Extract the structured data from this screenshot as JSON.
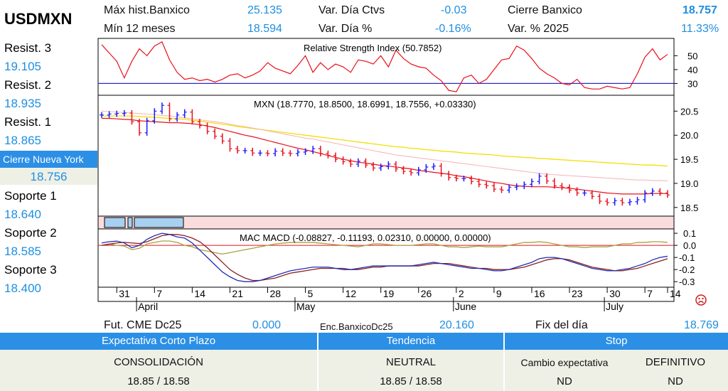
{
  "symbol": "USDMXN",
  "header": {
    "max_label": "Máx hist.Banxico",
    "max_value": "25.135",
    "min_label": "Mín 12 meses",
    "min_value": "18.594",
    "var_ctvs_label": "Var. Día Ctvs",
    "var_ctvs_value": "-0.03",
    "var_pct_label": "Var. Día %",
    "var_pct_value": "-0.16%",
    "cierre_label": "Cierre Banxico",
    "cierre_value": "18.757",
    "var2025_label": "Var. % 2025",
    "var2025_value": "11.33%"
  },
  "levels": [
    {
      "label": "Resist. 3",
      "value": "19.105"
    },
    {
      "label": "Resist. 2",
      "value": "18.935"
    },
    {
      "label": "Resist. 1",
      "value": "18.865"
    },
    {
      "label": "Soporte 1",
      "value": "18.640"
    },
    {
      "label": "Soporte 2",
      "value": "18.585"
    },
    {
      "label": "Soporte 3",
      "value": "18.400"
    }
  ],
  "ny": {
    "label": "Cierre Nueva York",
    "value": "18.756"
  },
  "footer_top": {
    "fut_label": "Fut. CME Dc25",
    "fut_value": "0.000",
    "enc_label": "Enc.BanxicoDc25",
    "enc_value": "20.160",
    "fix_label": "Fix del día",
    "fix_value": "18.769"
  },
  "bottom": {
    "h1": "Expectativa Corto Plazo",
    "h2": "Tendencia",
    "h3": "Stop",
    "c1a": "CONSOLIDACIÓN",
    "c1b": "18.85 / 18.58",
    "c2a": "NEUTRAL",
    "c2b": "18.85 / 18.58",
    "c3a_label": "Cambio expectativa",
    "c3a_value": "DEFINITIVO",
    "c3b_label": "ND",
    "c3b_value": "ND"
  },
  "colors": {
    "up": "#1a1aff",
    "down": "#e8101a",
    "ma_fast": "#e8101a",
    "ma_mid": "#f7b7bd",
    "ma_slow": "#f2e000",
    "rsi": "#e8101a",
    "rsi_level": "#2b2bd0",
    "macd": "#2030b0",
    "signal": "#8b2020",
    "sig2": "#a8a040"
  },
  "chart_data": [
    {
      "type": "line",
      "title": "Relative Strength Index (50.7852)",
      "ylim": [
        22,
        62
      ],
      "yticks": [
        30,
        40,
        50
      ],
      "reference": 30,
      "values": [
        58,
        52,
        46,
        34,
        46,
        55,
        50,
        57,
        60,
        47,
        38,
        33,
        34,
        32,
        33,
        31,
        33,
        36,
        37,
        34,
        36,
        39,
        45,
        41,
        39,
        37,
        43,
        50,
        38,
        45,
        40,
        44,
        42,
        38,
        47,
        46,
        44,
        50,
        42,
        54,
        48,
        44,
        42,
        41,
        36,
        32,
        25,
        24,
        34,
        36,
        30,
        33,
        40,
        47,
        48,
        57,
        54,
        48,
        41,
        37,
        34,
        30,
        29,
        33,
        27,
        26,
        26,
        28,
        27,
        26,
        27,
        37,
        49,
        55,
        47,
        51
      ]
    },
    {
      "type": "candlestick",
      "title": "MXN (18.7770, 18.8500, 18.6991, 18.7556, +0.03330)",
      "ylim": [
        18.35,
        20.8
      ],
      "yticks": [
        18.5,
        19.0,
        19.5,
        20.0,
        20.5
      ],
      "x_ticks": [
        "31",
        "7",
        "14",
        "21",
        "28",
        "5",
        "12",
        "19",
        "26",
        "2",
        "9",
        "16",
        "23",
        "30",
        "7",
        "14"
      ],
      "months": [
        "April",
        "May",
        "June",
        "July"
      ],
      "close": [
        20.42,
        20.44,
        20.45,
        20.46,
        20.28,
        20.05,
        20.3,
        20.5,
        20.62,
        20.34,
        20.42,
        20.48,
        20.28,
        20.2,
        20.08,
        19.98,
        19.88,
        19.72,
        19.68,
        19.68,
        19.63,
        19.63,
        19.62,
        19.67,
        19.63,
        19.62,
        19.65,
        19.67,
        19.72,
        19.62,
        19.58,
        19.5,
        19.45,
        19.4,
        19.46,
        19.38,
        19.32,
        19.35,
        19.4,
        19.3,
        19.25,
        19.22,
        19.28,
        19.34,
        19.36,
        19.2,
        19.12,
        19.1,
        19.1,
        19.04,
        18.98,
        18.95,
        18.88,
        18.86,
        18.92,
        18.94,
        18.98,
        19.04,
        19.15,
        19.05,
        18.95,
        18.92,
        18.86,
        18.8,
        18.8,
        18.73,
        18.63,
        18.6,
        18.64,
        18.6,
        18.62,
        18.66,
        18.8,
        18.84,
        18.8,
        18.76
      ],
      "ma_fast": [
        20.35,
        20.35,
        20.34,
        20.33,
        20.32,
        20.3,
        20.29,
        20.28,
        20.27,
        20.26,
        20.26,
        20.25,
        20.24,
        20.22,
        20.19,
        20.16,
        20.12,
        20.08,
        20.04,
        20.0,
        19.97,
        19.93,
        19.89,
        19.85,
        19.81,
        19.77,
        19.73,
        19.7,
        19.66,
        19.62,
        19.58,
        19.54,
        19.5,
        19.47,
        19.44,
        19.42,
        19.4,
        19.37,
        19.36,
        19.34,
        19.32,
        19.3,
        19.27,
        19.25,
        19.23,
        19.21,
        19.19,
        19.16,
        19.14,
        19.11,
        19.08,
        19.05,
        19.02,
        19.0,
        18.97,
        18.95,
        18.94,
        18.93,
        18.93,
        18.93,
        18.92,
        18.91,
        18.9,
        18.88,
        18.86,
        18.84,
        18.82,
        18.8,
        18.79,
        18.78,
        18.78,
        18.78,
        18.78,
        18.79,
        18.79,
        18.79
      ],
      "ma_mid": [
        20.5,
        20.49,
        20.48,
        20.47,
        20.46,
        20.45,
        20.44,
        20.43,
        20.41,
        20.4,
        20.38,
        20.36,
        20.34,
        20.32,
        20.3,
        20.28,
        20.26,
        20.23,
        20.2,
        20.18,
        20.15,
        20.12,
        20.09,
        20.06,
        20.03,
        20.0,
        19.97,
        19.94,
        19.92,
        19.89,
        19.86,
        19.83,
        19.8,
        19.77,
        19.74,
        19.71,
        19.68,
        19.65,
        19.62,
        19.59,
        19.57,
        19.55,
        19.53,
        19.51,
        19.49,
        19.47,
        19.45,
        19.43,
        19.41,
        19.39,
        19.37,
        19.35,
        19.33,
        19.31,
        19.29,
        19.27,
        19.25,
        19.23,
        19.21,
        19.19,
        19.18,
        19.17,
        19.16,
        19.15,
        19.14,
        19.13,
        19.12,
        19.11,
        19.1,
        19.09,
        19.08,
        19.07,
        19.07,
        19.06,
        19.06,
        19.05
      ],
      "ma_slow": [
        20.4,
        20.4,
        20.4,
        20.4,
        20.4,
        20.39,
        20.38,
        20.37,
        20.36,
        20.35,
        20.34,
        20.33,
        20.31,
        20.29,
        20.27,
        20.25,
        20.23,
        20.21,
        20.18,
        20.16,
        20.14,
        20.12,
        20.1,
        20.08,
        20.06,
        20.04,
        20.02,
        20.0,
        19.98,
        19.96,
        19.94,
        19.92,
        19.9,
        19.88,
        19.86,
        19.84,
        19.82,
        19.8,
        19.78,
        19.76,
        19.75,
        19.73,
        19.72,
        19.7,
        19.69,
        19.67,
        19.66,
        19.65,
        19.63,
        19.62,
        19.61,
        19.6,
        19.59,
        19.57,
        19.56,
        19.55,
        19.54,
        19.53,
        19.52,
        19.51,
        19.5,
        19.49,
        19.48,
        19.47,
        19.46,
        19.45,
        19.44,
        19.43,
        19.42,
        19.41,
        19.4,
        19.39,
        19.38,
        19.38,
        19.37,
        19.36
      ]
    },
    {
      "type": "line",
      "title": "MAC MACD (-0.08827, -0.11193, 0.02310, 0.00000, 0.00000)",
      "ylim": [
        -0.34,
        0.13
      ],
      "yticks": [
        0.1,
        0.0,
        -0.1,
        -0.2,
        -0.3
      ],
      "reference": 0.0,
      "macd": [
        0.02,
        0.03,
        0.035,
        0.02,
        -0.02,
        0.0,
        0.05,
        0.08,
        0.1,
        0.09,
        0.07,
        0.06,
        0.02,
        -0.04,
        -0.1,
        -0.16,
        -0.22,
        -0.26,
        -0.29,
        -0.3,
        -0.3,
        -0.29,
        -0.27,
        -0.25,
        -0.23,
        -0.21,
        -0.2,
        -0.19,
        -0.18,
        -0.18,
        -0.18,
        -0.19,
        -0.2,
        -0.2,
        -0.19,
        -0.18,
        -0.17,
        -0.17,
        -0.17,
        -0.17,
        -0.17,
        -0.17,
        -0.16,
        -0.15,
        -0.14,
        -0.15,
        -0.16,
        -0.17,
        -0.18,
        -0.19,
        -0.19,
        -0.2,
        -0.21,
        -0.21,
        -0.2,
        -0.18,
        -0.16,
        -0.14,
        -0.11,
        -0.1,
        -0.1,
        -0.11,
        -0.13,
        -0.15,
        -0.17,
        -0.19,
        -0.2,
        -0.21,
        -0.21,
        -0.2,
        -0.19,
        -0.17,
        -0.15,
        -0.12,
        -0.1,
        -0.09
      ],
      "signal": [
        0.0,
        0.01,
        0.02,
        0.025,
        0.02,
        0.015,
        0.03,
        0.055,
        0.08,
        0.09,
        0.09,
        0.08,
        0.06,
        0.03,
        -0.02,
        -0.08,
        -0.14,
        -0.2,
        -0.24,
        -0.27,
        -0.29,
        -0.29,
        -0.28,
        -0.27,
        -0.25,
        -0.23,
        -0.22,
        -0.21,
        -0.2,
        -0.19,
        -0.19,
        -0.19,
        -0.19,
        -0.2,
        -0.2,
        -0.19,
        -0.18,
        -0.18,
        -0.17,
        -0.17,
        -0.17,
        -0.17,
        -0.17,
        -0.16,
        -0.15,
        -0.15,
        -0.15,
        -0.16,
        -0.17,
        -0.18,
        -0.19,
        -0.19,
        -0.2,
        -0.2,
        -0.2,
        -0.19,
        -0.18,
        -0.16,
        -0.14,
        -0.12,
        -0.11,
        -0.11,
        -0.12,
        -0.14,
        -0.16,
        -0.18,
        -0.19,
        -0.2,
        -0.21,
        -0.21,
        -0.2,
        -0.19,
        -0.17,
        -0.15,
        -0.13,
        -0.11
      ],
      "hist": [
        0.0,
        0.01,
        0.0,
        -0.005,
        -0.03,
        -0.02,
        0.01,
        0.02,
        0.03,
        0.03,
        0.02,
        0.0,
        -0.01,
        -0.03,
        -0.04,
        -0.05,
        -0.06,
        -0.05,
        -0.04,
        -0.03,
        -0.02,
        -0.01,
        0.0,
        0.01,
        0.015,
        0.02,
        0.02,
        0.02,
        0.02,
        0.015,
        0.01,
        0.005,
        0.0,
        -0.005,
        -0.01,
        0.0,
        0.01,
        0.01,
        0.005,
        0.0,
        0.0,
        0.0,
        0.005,
        0.01,
        0.01,
        0.0,
        -0.01,
        -0.01,
        -0.015,
        -0.01,
        -0.005,
        -0.01,
        -0.01,
        -0.01,
        0.0,
        0.01,
        0.02,
        0.02,
        0.025,
        0.02,
        0.01,
        0.0,
        -0.01,
        -0.01,
        -0.015,
        -0.01,
        -0.01,
        -0.01,
        0.0,
        0.01,
        0.01,
        0.02,
        0.02,
        0.025,
        0.025,
        0.02
      ]
    }
  ]
}
